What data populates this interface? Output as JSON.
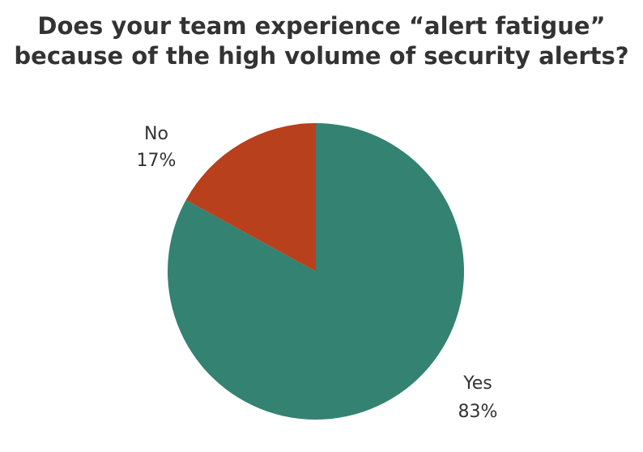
{
  "chart_data": {
    "type": "pie",
    "title_lines": [
      "Does your team experience “alert fatigue”",
      "because of the high volume of security alerts?"
    ],
    "slices": [
      {
        "label": "Yes",
        "value": 83,
        "value_label": "83%",
        "color": "#348272"
      },
      {
        "label": "No",
        "value": 17,
        "value_label": "17%",
        "color": "#B8401D"
      }
    ],
    "start": "12 o'clock",
    "direction": "clockwise",
    "legend": "none",
    "labels_outside_slices": true
  }
}
